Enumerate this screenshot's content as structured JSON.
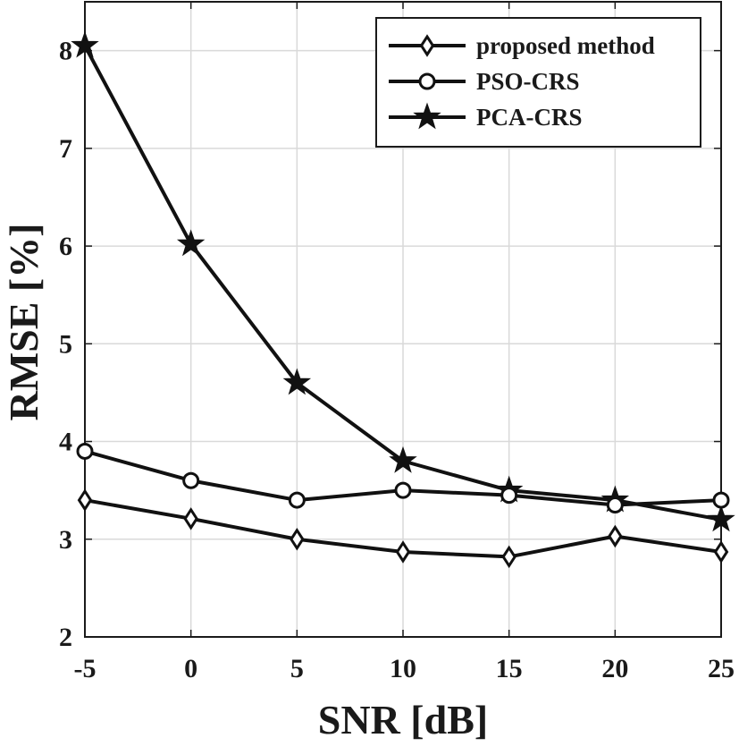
{
  "chart_data": {
    "type": "line",
    "xlabel": "SNR [dB]",
    "ylabel": "RMSE [%]",
    "x": [
      -5,
      0,
      5,
      10,
      15,
      20,
      25
    ],
    "xticks": [
      "-5",
      "0",
      "5",
      "10",
      "15",
      "20",
      "25"
    ],
    "yticks": [
      "2",
      "3",
      "4",
      "5",
      "6",
      "7",
      "8"
    ],
    "xlim": [
      -5,
      25
    ],
    "ylim": [
      2,
      8.5
    ],
    "grid": true,
    "legend_position": "top-right",
    "series": [
      {
        "name": "proposed method",
        "marker": "diamond",
        "values": [
          3.4,
          3.21,
          3.0,
          2.87,
          2.82,
          3.03,
          2.87
        ]
      },
      {
        "name": "PSO-CRS",
        "marker": "circle",
        "values": [
          3.9,
          3.6,
          3.4,
          3.5,
          3.45,
          3.35,
          3.4
        ]
      },
      {
        "name": "PCA-CRS",
        "marker": "star",
        "values": [
          8.05,
          6.02,
          4.6,
          3.8,
          3.5,
          3.4,
          3.2
        ]
      }
    ],
    "colors": {
      "line": "#111111",
      "grid": "#d9d9d9",
      "axis": "#1a1a1a"
    }
  }
}
